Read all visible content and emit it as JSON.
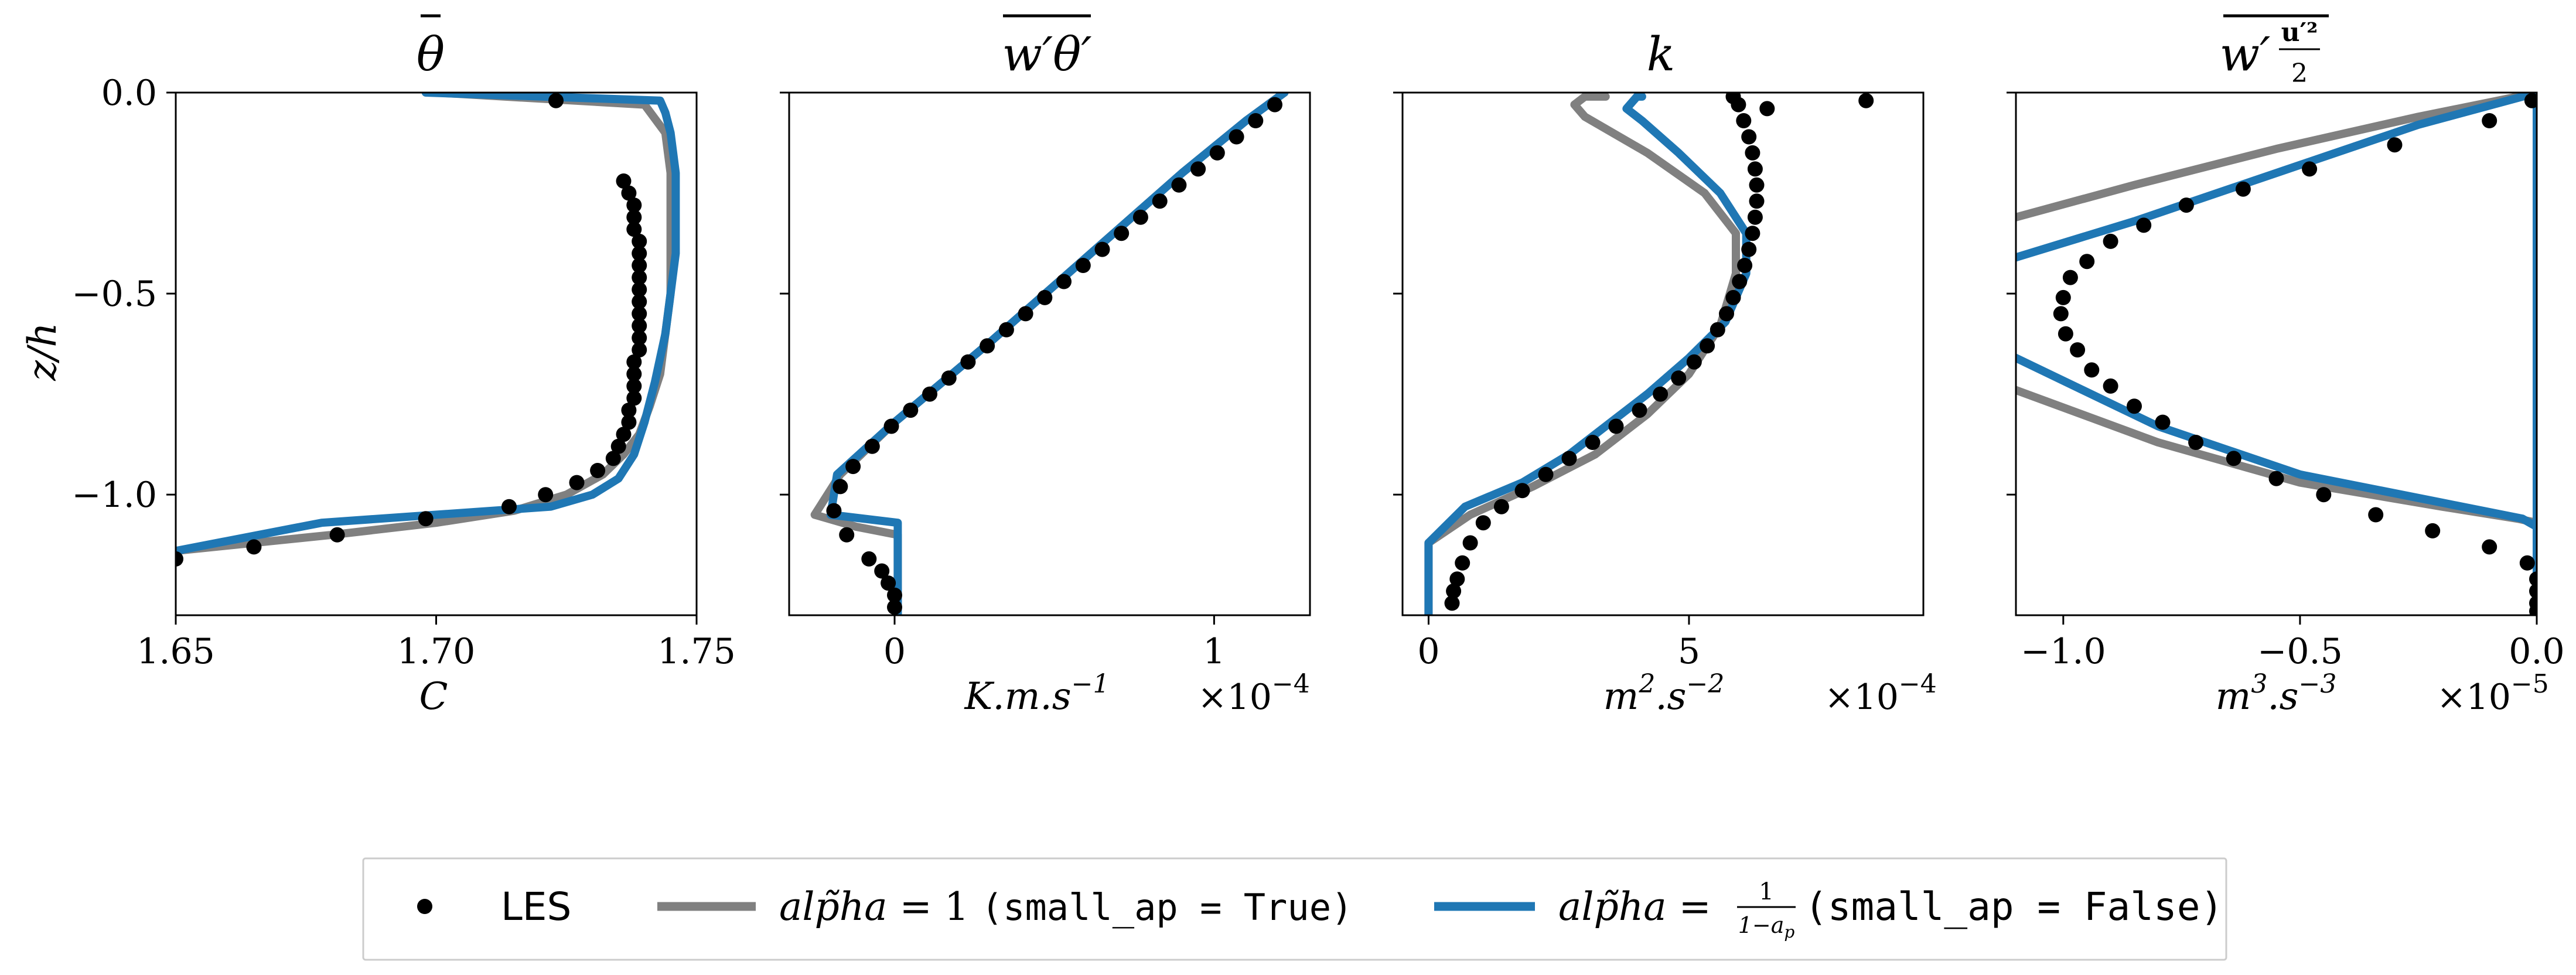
{
  "colors": {
    "les": "#000000",
    "small_ap_true": "#808080",
    "small_ap_false": "#1f77b4"
  },
  "ylabel": "z/h",
  "legend": {
    "placement": "bottom-center",
    "entries": [
      {
        "series": "LES",
        "label": "LES"
      },
      {
        "series": "alpha_one",
        "label": "alp̃ha = 1",
        "code": "(small_ap = True)"
      },
      {
        "series": "alpha_frac",
        "label": "alp̃ha = 1/(1−a_p)",
        "code": "(small_ap = False)"
      }
    ]
  },
  "chart_data": [
    {
      "type": "line",
      "title": "θ̄",
      "xlabel": "C",
      "xlim": [
        1.65,
        1.75
      ],
      "ylim": [
        -1.3,
        0.0
      ],
      "xticks": [
        1.65,
        1.7,
        1.75
      ],
      "xtick_labels": [
        "1.65",
        "1.70",
        "1.75"
      ],
      "yticks": [
        0.0,
        -0.5,
        -1.0
      ],
      "ytick_labels": [
        "0.0",
        "−0.5",
        "−1.0"
      ],
      "series": [
        {
          "name": "LES",
          "style": "markers",
          "x": [
            1.65,
            1.665,
            1.681,
            1.698,
            1.714,
            1.721,
            1.727,
            1.731,
            1.734,
            1.735,
            1.736,
            1.737,
            1.737,
            1.738,
            1.738,
            1.738,
            1.738,
            1.739,
            1.739,
            1.739,
            1.739,
            1.739,
            1.739,
            1.739,
            1.739,
            1.739,
            1.739,
            1.738,
            1.738,
            1.738,
            1.737,
            1.736,
            1.723
          ],
          "y": [
            -1.16,
            -1.13,
            -1.1,
            -1.06,
            -1.03,
            -1.0,
            -0.97,
            -0.94,
            -0.91,
            -0.88,
            -0.85,
            -0.82,
            -0.79,
            -0.76,
            -0.73,
            -0.7,
            -0.67,
            -0.64,
            -0.61,
            -0.58,
            -0.55,
            -0.52,
            -0.49,
            -0.46,
            -0.43,
            -0.4,
            -0.37,
            -0.34,
            -0.31,
            -0.28,
            -0.25,
            -0.22,
            -0.02
          ]
        },
        {
          "name": "alpha_one",
          "style": "line",
          "x": [
            1.65,
            1.68,
            1.7,
            1.715,
            1.725,
            1.732,
            1.736,
            1.739,
            1.741,
            1.743,
            1.744,
            1.745,
            1.745,
            1.745,
            1.745,
            1.744,
            1.74,
            1.7
          ],
          "y": [
            -1.14,
            -1.1,
            -1.07,
            -1.04,
            -1.0,
            -0.95,
            -0.9,
            -0.85,
            -0.78,
            -0.7,
            -0.6,
            -0.5,
            -0.4,
            -0.3,
            -0.2,
            -0.1,
            -0.03,
            0.0
          ]
        },
        {
          "name": "alpha_frac",
          "style": "line",
          "x": [
            1.65,
            1.678,
            1.722,
            1.73,
            1.735,
            1.738,
            1.74,
            1.742,
            1.744,
            1.745,
            1.746,
            1.746,
            1.746,
            1.745,
            1.744,
            1.743,
            1.698
          ],
          "y": [
            -1.14,
            -1.07,
            -1.03,
            -1.0,
            -0.96,
            -0.9,
            -0.82,
            -0.72,
            -0.6,
            -0.5,
            -0.4,
            -0.3,
            -0.2,
            -0.1,
            -0.05,
            -0.02,
            0.0
          ]
        }
      ]
    },
    {
      "type": "line",
      "title": "w′θ′ (overbar)",
      "xlabel": "K.m.s^-1",
      "exponent": "×10^−4",
      "xlim": [
        -0.33,
        1.3
      ],
      "ylim": [
        -1.3,
        0.0
      ],
      "xticks": [
        0,
        1
      ],
      "xtick_labels": [
        "0",
        "1"
      ],
      "yticks": [
        0.0,
        -0.5,
        -1.0
      ],
      "series": [
        {
          "name": "LES",
          "style": "markers",
          "x": [
            0.0,
            0.0,
            -0.02,
            -0.04,
            -0.08,
            -0.15,
            -0.19,
            -0.17,
            -0.13,
            -0.07,
            -0.01,
            0.05,
            0.11,
            0.17,
            0.23,
            0.29,
            0.35,
            0.41,
            0.47,
            0.53,
            0.59,
            0.65,
            0.71,
            0.77,
            0.83,
            0.89,
            0.95,
            1.01,
            1.07,
            1.13,
            1.19
          ],
          "y": [
            -1.28,
            -1.25,
            -1.22,
            -1.19,
            -1.16,
            -1.1,
            -1.04,
            -0.98,
            -0.93,
            -0.88,
            -0.83,
            -0.79,
            -0.75,
            -0.71,
            -0.67,
            -0.63,
            -0.59,
            -0.55,
            -0.51,
            -0.47,
            -0.43,
            -0.39,
            -0.35,
            -0.31,
            -0.27,
            -0.23,
            -0.19,
            -0.15,
            -0.11,
            -0.07,
            -0.03
          ]
        },
        {
          "name": "alpha_one",
          "style": "line",
          "x": [
            0.01,
            0.01,
            -0.12,
            -0.25,
            -0.17,
            0.0,
            0.3,
            0.6,
            0.9,
            1.1,
            1.22
          ],
          "y": [
            -1.3,
            -1.1,
            -1.08,
            -1.05,
            -0.95,
            -0.82,
            -0.62,
            -0.41,
            -0.2,
            -0.07,
            0.0
          ]
        },
        {
          "name": "alpha_frac",
          "style": "line",
          "x": [
            0.01,
            0.01,
            -0.2,
            -0.18,
            0.0,
            0.3,
            0.6,
            0.9,
            1.1,
            1.22
          ],
          "y": [
            -1.3,
            -1.07,
            -1.05,
            -0.95,
            -0.82,
            -0.62,
            -0.41,
            -0.2,
            -0.07,
            0.0
          ]
        }
      ]
    },
    {
      "type": "line",
      "title": "k",
      "xlabel": "m^2.s^-2",
      "exponent": "×10^−4",
      "xlim": [
        -0.5,
        9.5
      ],
      "ylim": [
        -1.3,
        0.0
      ],
      "xticks": [
        0,
        5
      ],
      "xtick_labels": [
        "0",
        "5"
      ],
      "yticks": [
        0.0,
        -0.5,
        -1.0
      ],
      "series": [
        {
          "name": "LES",
          "style": "markers",
          "x": [
            0.45,
            0.48,
            0.55,
            0.65,
            0.8,
            1.05,
            1.4,
            1.8,
            2.25,
            2.7,
            3.15,
            3.6,
            4.05,
            4.45,
            4.8,
            5.1,
            5.35,
            5.55,
            5.72,
            5.85,
            5.97,
            6.07,
            6.15,
            6.22,
            6.27,
            6.3,
            6.3,
            6.27,
            6.22,
            6.15,
            6.05,
            5.95,
            5.85,
            6.5,
            8.4
          ],
          "y": [
            -1.27,
            -1.24,
            -1.21,
            -1.17,
            -1.12,
            -1.07,
            -1.03,
            -0.99,
            -0.95,
            -0.91,
            -0.87,
            -0.83,
            -0.79,
            -0.75,
            -0.71,
            -0.67,
            -0.63,
            -0.59,
            -0.55,
            -0.51,
            -0.47,
            -0.43,
            -0.39,
            -0.35,
            -0.31,
            -0.27,
            -0.23,
            -0.19,
            -0.15,
            -0.11,
            -0.07,
            -0.03,
            -0.01,
            -0.04,
            -0.02
          ]
        },
        {
          "name": "alpha_one",
          "style": "line",
          "x": [
            0.0,
            0.0,
            0.8,
            2.0,
            3.2,
            4.2,
            5.0,
            5.6,
            5.9,
            5.9,
            5.3,
            4.2,
            3.0,
            2.8,
            3.0,
            3.4
          ],
          "y": [
            -1.3,
            -1.12,
            -1.05,
            -0.98,
            -0.9,
            -0.8,
            -0.7,
            -0.58,
            -0.45,
            -0.35,
            -0.25,
            -0.15,
            -0.06,
            -0.03,
            -0.01,
            -0.01
          ]
        },
        {
          "name": "alpha_frac",
          "style": "line",
          "x": [
            0.0,
            0.0,
            0.7,
            1.8,
            2.7,
            3.5,
            4.2,
            5.0,
            5.7,
            6.1,
            6.1,
            5.6,
            4.8,
            4.1,
            3.8,
            4.0,
            4.1
          ],
          "y": [
            -1.3,
            -1.12,
            -1.03,
            -0.97,
            -0.9,
            -0.82,
            -0.75,
            -0.66,
            -0.57,
            -0.45,
            -0.35,
            -0.25,
            -0.15,
            -0.07,
            -0.04,
            -0.01,
            -0.01
          ]
        }
      ]
    },
    {
      "type": "line",
      "title": "w′ u′²/2 (overbar)",
      "xlabel": "m^3.s^-3",
      "exponent": "×10^−5",
      "xlim": [
        -1.1,
        0.0
      ],
      "ylim": [
        -1.3,
        0.0
      ],
      "xticks": [
        -1.0,
        -0.5,
        0.0
      ],
      "xtick_labels": [
        "−1.0",
        "−0.5",
        "0.0"
      ],
      "yticks": [
        0.0,
        -0.5,
        -1.0
      ],
      "series": [
        {
          "name": "LES",
          "style": "markers",
          "x": [
            -0.01,
            -0.1,
            -0.3,
            -0.48,
            -0.62,
            -0.74,
            -0.83,
            -0.9,
            -0.95,
            -0.985,
            -1.0,
            -1.005,
            -0.995,
            -0.97,
            -0.94,
            -0.9,
            -0.85,
            -0.79,
            -0.72,
            -0.64,
            -0.55,
            -0.45,
            -0.34,
            -0.22,
            -0.1,
            -0.02,
            0.0,
            0.0,
            0.0,
            0.0
          ],
          "y": [
            -0.02,
            -0.07,
            -0.13,
            -0.19,
            -0.24,
            -0.28,
            -0.33,
            -0.37,
            -0.42,
            -0.46,
            -0.51,
            -0.55,
            -0.6,
            -0.64,
            -0.69,
            -0.73,
            -0.78,
            -0.82,
            -0.87,
            -0.91,
            -0.96,
            -1.0,
            -1.05,
            -1.09,
            -1.13,
            -1.17,
            -1.21,
            -1.24,
            -1.27,
            -1.29
          ]
        },
        {
          "name": "alpha_one",
          "style": "line",
          "x": [
            -1.1,
            -0.85,
            -0.55,
            -0.25,
            -0.04,
            0.0,
            0.0,
            0.0,
            -0.04,
            -0.2,
            -0.5,
            -0.8,
            -1.1
          ],
          "y": [
            -0.31,
            -0.23,
            -0.14,
            -0.06,
            -0.01,
            0.0,
            -1.3,
            -1.07,
            -1.06,
            -1.03,
            -0.97,
            -0.87,
            -0.74
          ]
        },
        {
          "name": "alpha_frac",
          "style": "line",
          "x": [
            -1.1,
            -0.85,
            -0.55,
            -0.25,
            -0.03,
            0.0,
            0.0,
            0.0,
            -0.03,
            -0.2,
            -0.5,
            -0.8,
            -1.1
          ],
          "y": [
            -0.41,
            -0.32,
            -0.2,
            -0.08,
            -0.01,
            0.0,
            -1.3,
            -1.08,
            -1.06,
            -1.02,
            -0.95,
            -0.83,
            -0.66
          ]
        }
      ]
    }
  ]
}
